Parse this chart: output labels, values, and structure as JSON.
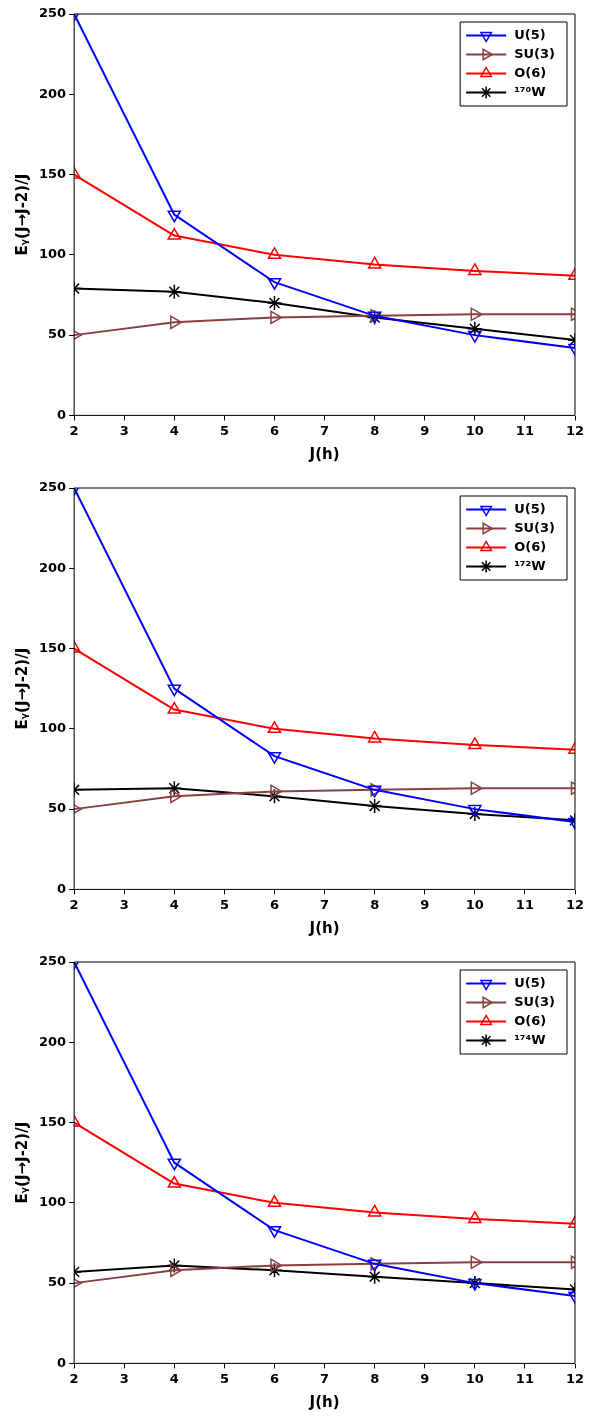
{
  "chart_data": [
    {
      "type": "line",
      "xlabel": "J(h)",
      "ylabel": "Eᵧ(J→J-2)/J",
      "x": [
        2,
        4,
        6,
        8,
        10,
        12
      ],
      "xlim": [
        2,
        12
      ],
      "xticks": [
        2,
        3,
        4,
        5,
        6,
        7,
        8,
        9,
        10,
        11,
        12
      ],
      "ylim": [
        0,
        250
      ],
      "yticks": [
        0,
        50,
        100,
        150,
        200,
        250
      ],
      "grid": false,
      "legend": "top right",
      "line_style": "solid",
      "series": [
        {
          "name": "U(5)",
          "color": "#0000ff",
          "marker": "triangle-down",
          "values": [
            250,
            125,
            83,
            62,
            50,
            42
          ]
        },
        {
          "name": "SU(3)",
          "color": "#8b4040",
          "marker": "triangle-right",
          "values": [
            50,
            58,
            61,
            62,
            63,
            63
          ]
        },
        {
          "name": "O(6)",
          "color": "#ff0000",
          "marker": "triangle",
          "values": [
            150,
            112,
            100,
            94,
            90,
            87
          ]
        },
        {
          "name": "¹⁷⁰W",
          "color": "#000000",
          "marker": "cross",
          "values": [
            79,
            77,
            70,
            61,
            54,
            47
          ]
        }
      ]
    },
    {
      "type": "line",
      "xlabel": "J(h)",
      "ylabel": "Eᵧ(J→J-2)/J",
      "x": [
        2,
        4,
        6,
        8,
        10,
        12
      ],
      "xlim": [
        2,
        12
      ],
      "xticks": [
        2,
        3,
        4,
        5,
        6,
        7,
        8,
        9,
        10,
        11,
        12
      ],
      "ylim": [
        0,
        250
      ],
      "yticks": [
        0,
        50,
        100,
        150,
        200,
        250
      ],
      "grid": false,
      "legend": "top right",
      "line_style": "solid",
      "series": [
        {
          "name": "U(5)",
          "color": "#0000ff",
          "marker": "triangle-down",
          "values": [
            250,
            125,
            83,
            62,
            50,
            42
          ]
        },
        {
          "name": "SU(3)",
          "color": "#8b4040",
          "marker": "triangle-right",
          "values": [
            50,
            58,
            61,
            62,
            63,
            63
          ]
        },
        {
          "name": "O(6)",
          "color": "#ff0000",
          "marker": "triangle",
          "values": [
            150,
            112,
            100,
            94,
            90,
            87
          ]
        },
        {
          "name": "¹⁷²W",
          "color": "#000000",
          "marker": "cross",
          "values": [
            62,
            63,
            58,
            52,
            47,
            43
          ]
        }
      ]
    },
    {
      "type": "line",
      "xlabel": "J(h)",
      "ylabel": "Eᵧ(J→J-2)/J",
      "x": [
        2,
        4,
        6,
        8,
        10,
        12
      ],
      "xlim": [
        2,
        12
      ],
      "xticks": [
        2,
        3,
        4,
        5,
        6,
        7,
        8,
        9,
        10,
        11,
        12
      ],
      "ylim": [
        0,
        250
      ],
      "yticks": [
        0,
        50,
        100,
        150,
        200,
        250
      ],
      "grid": false,
      "legend": "top right",
      "line_style": "solid",
      "series": [
        {
          "name": "U(5)",
          "color": "#0000ff",
          "marker": "triangle-down",
          "values": [
            250,
            125,
            83,
            62,
            50,
            42
          ]
        },
        {
          "name": "SU(3)",
          "color": "#8b4040",
          "marker": "triangle-right",
          "values": [
            50,
            58,
            61,
            62,
            63,
            63
          ]
        },
        {
          "name": "O(6)",
          "color": "#ff0000",
          "marker": "triangle",
          "values": [
            150,
            112,
            100,
            94,
            90,
            87
          ]
        },
        {
          "name": "¹⁷⁴W",
          "color": "#000000",
          "marker": "cross",
          "values": [
            57,
            61,
            58,
            54,
            50,
            46
          ]
        }
      ]
    }
  ]
}
